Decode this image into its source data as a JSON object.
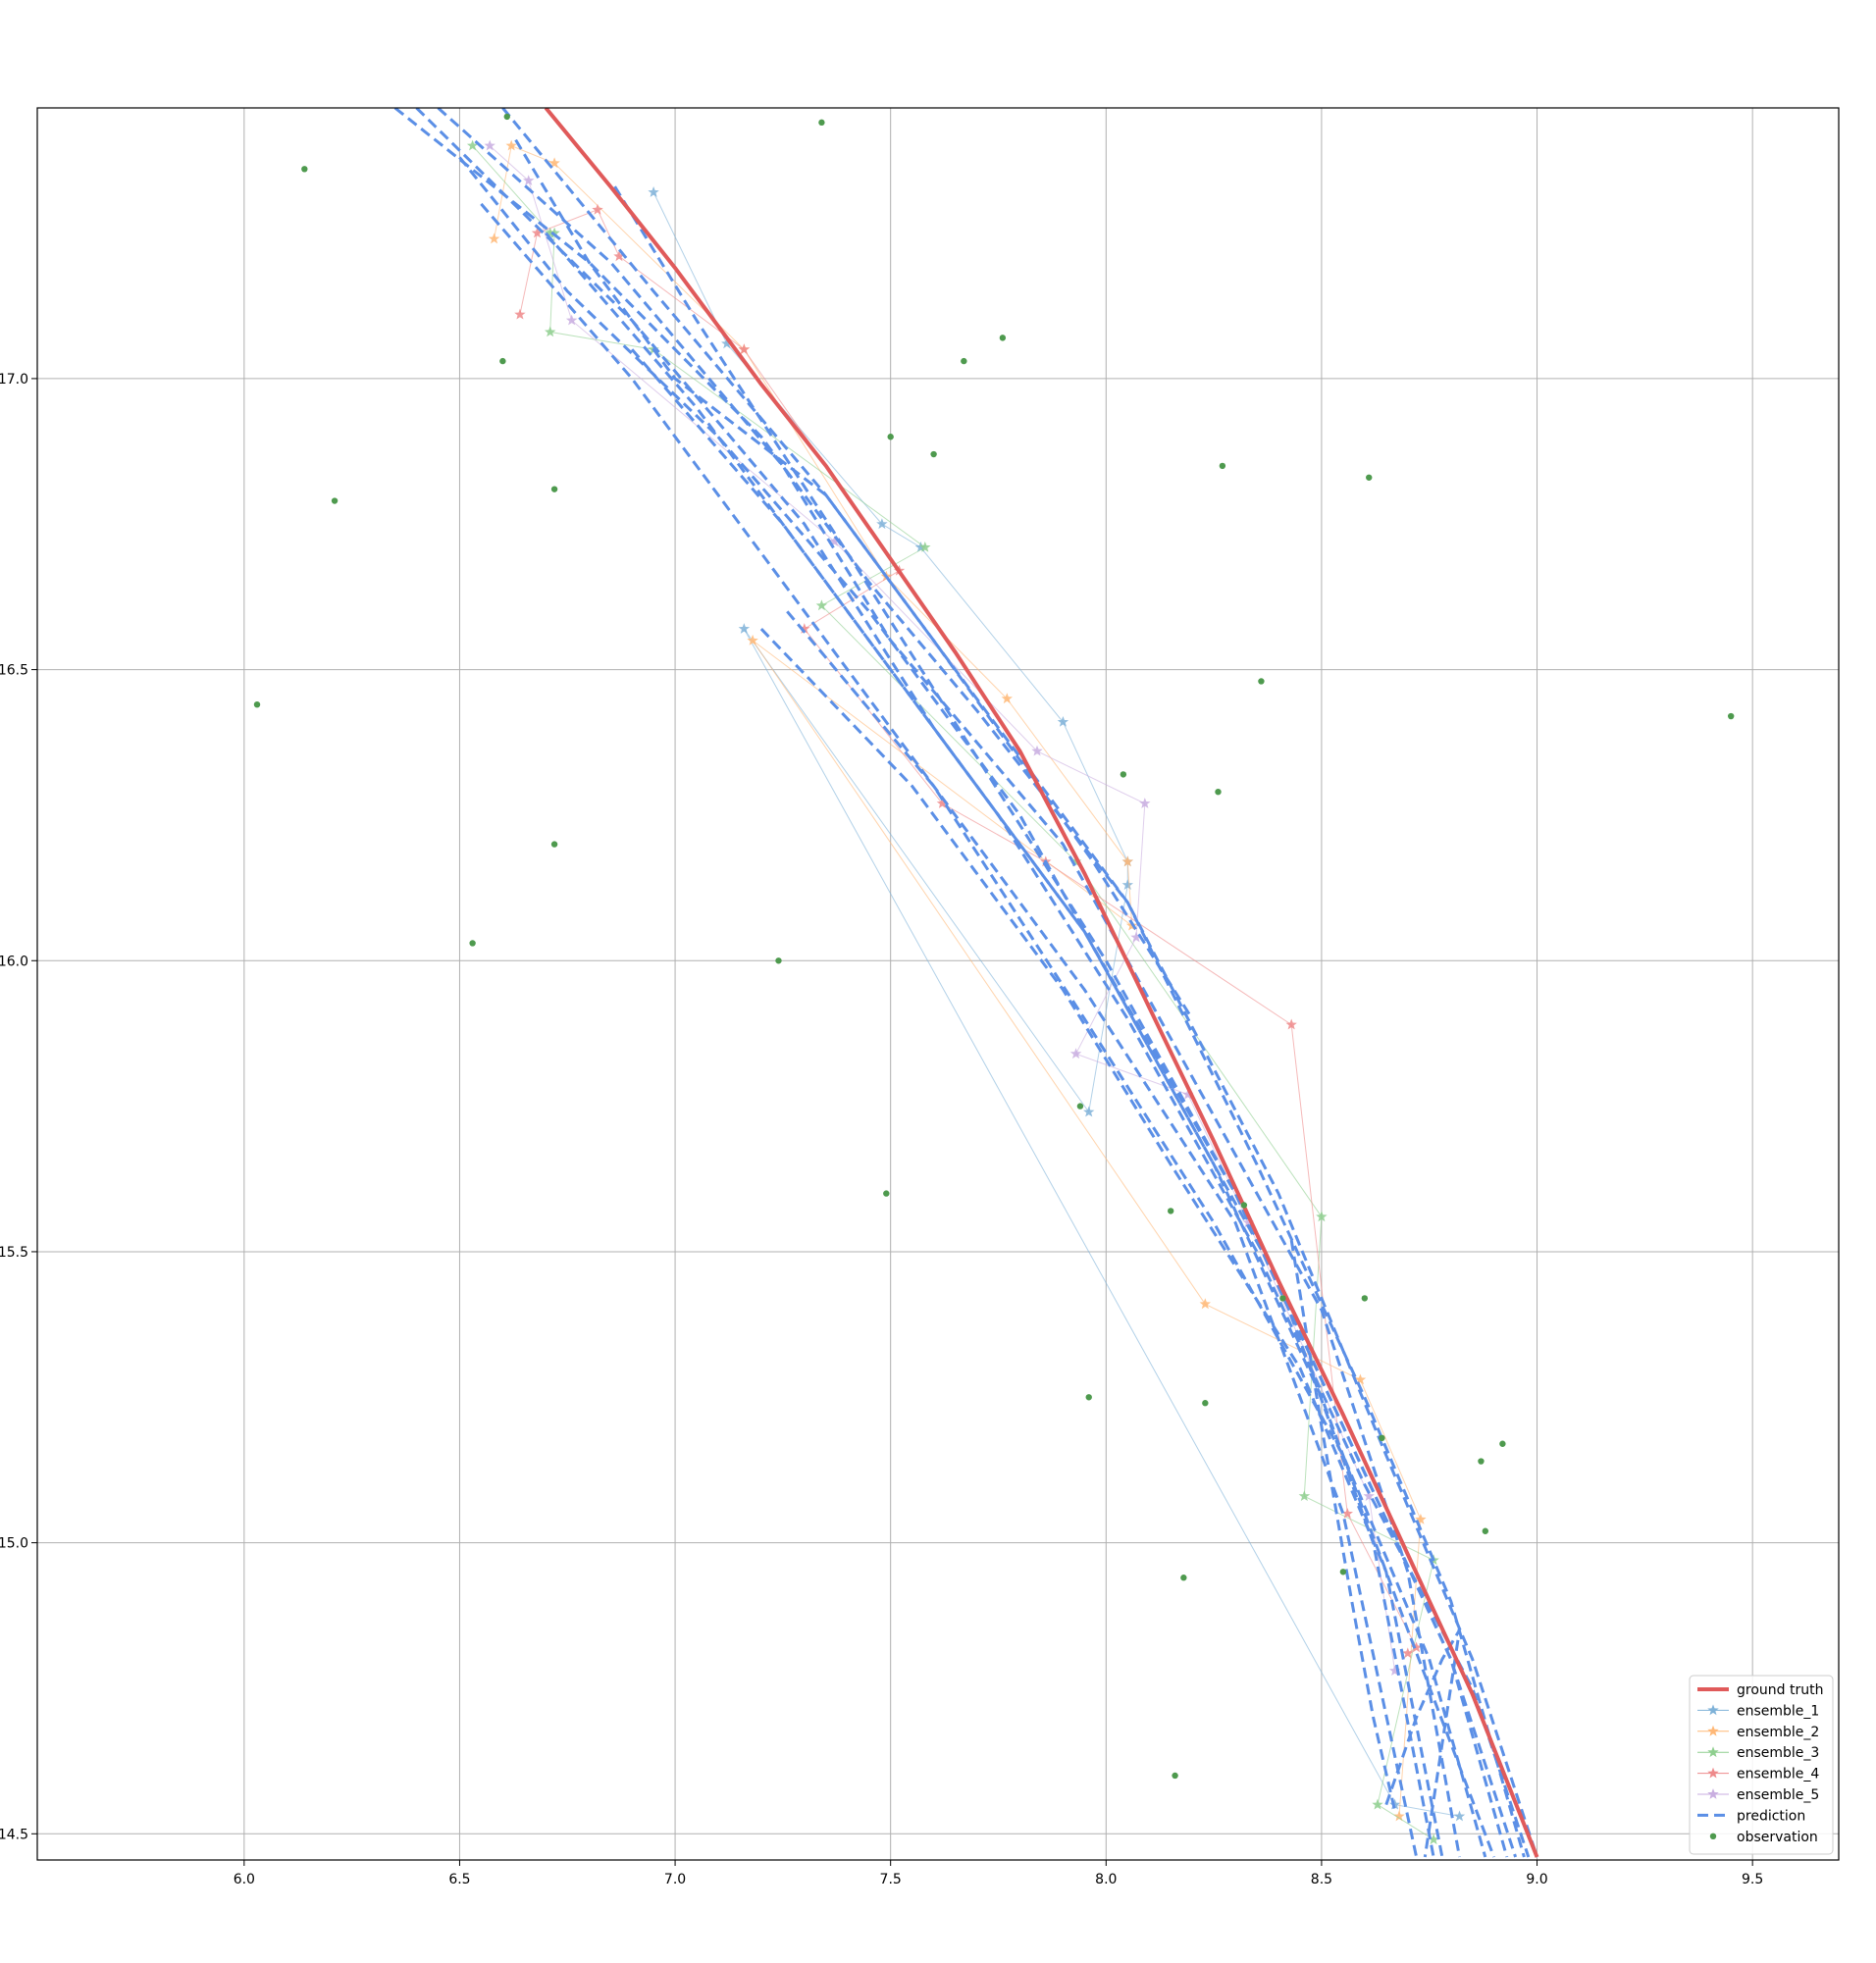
{
  "chart_data": {
    "type": "line",
    "title": "",
    "xlabel": "",
    "ylabel": "",
    "xlim": [
      5.52,
      9.7
    ],
    "ylim": [
      14.455,
      17.465
    ],
    "grid": true,
    "legend_position": "lower-right",
    "x_ticks": [
      {
        "value": 6.0,
        "label": "6.0"
      },
      {
        "value": 6.5,
        "label": "6.5"
      },
      {
        "value": 7.0,
        "label": "7.0"
      },
      {
        "value": 7.5,
        "label": "7.5"
      },
      {
        "value": 8.0,
        "label": "8.0"
      },
      {
        "value": 8.5,
        "label": "8.5"
      },
      {
        "value": 9.0,
        "label": "9.0"
      },
      {
        "value": 9.5,
        "label": "9.5"
      }
    ],
    "y_ticks": [
      {
        "value": 14.5,
        "label": "14.5"
      },
      {
        "value": 15.0,
        "label": "15.0"
      },
      {
        "value": 15.5,
        "label": "15.5"
      },
      {
        "value": 16.0,
        "label": "16.0"
      },
      {
        "value": 16.5,
        "label": "16.5"
      },
      {
        "value": 17.0,
        "label": "17.0"
      }
    ],
    "legend": [
      {
        "key": "ground_truth",
        "label": "ground truth",
        "color": "#e05a5a",
        "style": "line-thick"
      },
      {
        "key": "ensemble_1",
        "label": "ensemble_1",
        "color": "#7fb2d8",
        "style": "line-star"
      },
      {
        "key": "ensemble_2",
        "label": "ensemble_2",
        "color": "#ffb877",
        "style": "line-star"
      },
      {
        "key": "ensemble_3",
        "label": "ensemble_3",
        "color": "#8fcf8f",
        "style": "line-star"
      },
      {
        "key": "ensemble_4",
        "label": "ensemble_4",
        "color": "#ee8a8b",
        "style": "line-star"
      },
      {
        "key": "ensemble_5",
        "label": "ensemble_5",
        "color": "#c9aee0",
        "style": "line-star"
      },
      {
        "key": "prediction",
        "label": "prediction",
        "color": "#5b8fe6",
        "style": "dashed"
      },
      {
        "key": "observation",
        "label": "observation",
        "color": "#4e9a4e",
        "style": "dot"
      }
    ],
    "ground_truth": {
      "x": [
        6.7,
        6.85,
        7.0,
        7.2,
        7.35,
        7.5,
        7.65,
        7.8,
        7.95,
        8.1,
        8.25,
        8.4,
        8.55,
        8.7,
        8.85,
        9.0
      ],
      "y": [
        17.465,
        17.33,
        17.19,
        16.99,
        16.85,
        16.69,
        16.53,
        16.36,
        16.15,
        15.92,
        15.69,
        15.45,
        15.22,
        14.98,
        14.74,
        14.46
      ]
    },
    "observations": {
      "x": [
        6.14,
        6.61,
        7.34,
        6.6,
        6.21,
        6.72,
        6.03,
        6.53,
        6.72,
        7.24,
        7.5,
        7.6,
        7.67,
        7.76,
        8.27,
        8.61,
        8.04,
        8.26,
        8.36,
        9.45,
        7.94,
        8.15,
        7.49,
        8.32,
        8.41,
        8.6,
        7.96,
        8.23,
        8.64,
        8.87,
        8.92,
        8.88,
        8.18,
        8.55,
        8.16
      ],
      "y": [
        17.36,
        17.45,
        17.44,
        17.03,
        16.79,
        16.81,
        16.44,
        16.03,
        16.2,
        16.0,
        16.9,
        16.87,
        17.03,
        17.07,
        16.85,
        16.83,
        16.32,
        16.29,
        16.48,
        16.42,
        15.75,
        15.57,
        15.6,
        15.58,
        15.42,
        15.42,
        15.25,
        15.24,
        15.18,
        15.14,
        15.17,
        15.02,
        14.94,
        14.95,
        14.6
      ]
    },
    "ensemble_1": {
      "x": [
        6.95,
        7.12,
        7.48,
        7.57,
        7.9,
        8.05,
        8.05,
        7.96,
        7.16,
        8.67,
        8.82
      ],
      "y": [
        17.32,
        17.06,
        16.75,
        16.71,
        16.41,
        16.17,
        16.13,
        15.74,
        16.57,
        14.55,
        14.53
      ]
    },
    "ensemble_2": {
      "x": [
        6.58,
        6.62,
        6.72,
        7.16,
        7.49,
        7.77,
        8.05,
        8.06,
        7.18,
        8.23,
        8.59,
        8.73,
        8.68
      ],
      "y": [
        17.24,
        17.4,
        17.37,
        17.05,
        16.66,
        16.45,
        16.17,
        16.06,
        16.55,
        15.41,
        15.28,
        15.04,
        14.53
      ]
    },
    "ensemble_3": {
      "x": [
        6.53,
        6.71,
        6.72,
        6.71,
        6.95,
        7.58,
        7.34,
        7.93,
        8.5,
        8.46,
        8.76,
        8.63,
        8.76
      ],
      "y": [
        17.4,
        17.25,
        17.25,
        17.08,
        17.05,
        16.71,
        16.61,
        16.17,
        15.56,
        15.08,
        14.97,
        14.55,
        14.49
      ]
    },
    "ensemble_4": {
      "x": [
        6.64,
        6.68,
        6.82,
        6.87,
        7.16,
        7.52,
        7.3,
        7.62,
        7.86,
        8.43,
        8.56,
        8.72,
        8.7
      ],
      "y": [
        17.11,
        17.25,
        17.29,
        17.21,
        17.05,
        16.67,
        16.57,
        16.27,
        16.17,
        15.89,
        15.05,
        14.82,
        14.81
      ]
    },
    "ensemble_5": {
      "x": [
        6.57,
        6.66,
        6.76,
        7.37,
        7.84,
        8.09,
        8.07,
        7.93,
        8.19,
        8.33,
        8.61,
        8.67
      ],
      "y": [
        17.4,
        17.34,
        17.1,
        16.72,
        16.36,
        16.27,
        16.04,
        15.84,
        15.77,
        15.55,
        15.08,
        14.78
      ]
    },
    "predictions": [
      {
        "x": [
          6.35,
          6.8,
          7.2,
          7.45,
          7.7,
          8.05,
          8.35,
          8.6,
          8.8,
          8.97
        ],
        "y": [
          17.465,
          17.2,
          16.9,
          16.65,
          16.43,
          16.1,
          15.65,
          15.25,
          14.9,
          14.46
        ]
      },
      {
        "x": [
          6.4,
          6.9,
          7.3,
          7.6,
          7.95,
          8.3,
          8.55,
          8.8,
          8.95
        ],
        "y": [
          17.465,
          17.1,
          16.75,
          16.4,
          16.05,
          15.6,
          15.2,
          14.8,
          14.46
        ]
      },
      {
        "x": [
          6.6,
          6.95,
          7.35,
          7.7,
          8.05,
          8.4,
          8.65,
          8.85,
          9.0
        ],
        "y": [
          17.465,
          17.15,
          16.8,
          16.45,
          16.1,
          15.6,
          15.15,
          14.8,
          14.46
        ]
      },
      {
        "x": [
          6.45,
          6.85,
          7.25,
          7.5,
          7.9,
          8.2,
          8.5,
          8.7,
          8.82
        ],
        "y": [
          17.465,
          17.2,
          16.85,
          16.55,
          16.2,
          15.8,
          15.4,
          14.95,
          14.46
        ]
      },
      {
        "x": [
          6.86,
          7.05,
          7.4,
          7.7,
          8.0,
          8.3,
          8.55,
          8.8,
          8.93
        ],
        "y": [
          17.33,
          17.1,
          16.7,
          16.35,
          16.0,
          15.6,
          15.2,
          14.8,
          14.46
        ]
      },
      {
        "x": [
          6.63,
          6.8,
          7.0,
          7.35,
          7.6,
          7.97,
          8.2
        ],
        "y": [
          17.41,
          17.2,
          17.0,
          16.8,
          16.55,
          16.17,
          15.9
        ]
      },
      {
        "x": [
          6.5,
          6.75,
          7.1,
          7.45,
          7.8,
          8.1,
          8.4,
          8.62,
          8.76
        ],
        "y": [
          17.38,
          17.15,
          16.9,
          16.6,
          16.25,
          15.85,
          15.45,
          15.0,
          14.46
        ]
      },
      {
        "x": [
          7.2,
          7.55,
          7.9,
          8.15,
          8.45,
          8.65,
          8.78
        ],
        "y": [
          16.57,
          16.3,
          15.95,
          15.65,
          15.3,
          14.95,
          14.46
        ]
      },
      {
        "x": [
          6.7,
          7.05,
          7.4,
          7.75,
          8.05,
          8.35,
          8.6,
          8.85,
          8.98
        ],
        "y": [
          17.25,
          16.95,
          16.6,
          16.25,
          15.9,
          15.5,
          15.1,
          14.75,
          14.46
        ]
      },
      {
        "x": [
          6.9,
          7.25,
          7.6,
          7.95,
          8.25,
          8.5,
          8.7,
          8.9
        ],
        "y": [
          17.05,
          16.75,
          16.4,
          16.05,
          15.65,
          15.25,
          14.85,
          14.46
        ]
      },
      {
        "x": [
          8.43,
          8.5,
          8.57,
          8.62,
          8.67
        ],
        "y": [
          15.52,
          15.2,
          14.9,
          14.7,
          14.54
        ]
      },
      {
        "x": [
          8.65,
          8.72,
          8.78,
          8.82,
          8.74
        ],
        "y": [
          14.55,
          14.7,
          14.8,
          14.85,
          14.46
        ]
      },
      {
        "x": [
          7.26,
          7.6,
          7.95,
          8.25,
          8.55,
          8.75,
          8.88
        ],
        "y": [
          16.6,
          16.3,
          15.9,
          15.55,
          15.15,
          14.8,
          14.46
        ]
      },
      {
        "x": [
          6.55,
          6.9,
          7.25,
          7.6,
          7.95,
          8.3,
          8.55,
          8.72
        ],
        "y": [
          17.3,
          17.0,
          16.65,
          16.3,
          15.95,
          15.55,
          15.05,
          14.46
        ]
      }
    ]
  }
}
